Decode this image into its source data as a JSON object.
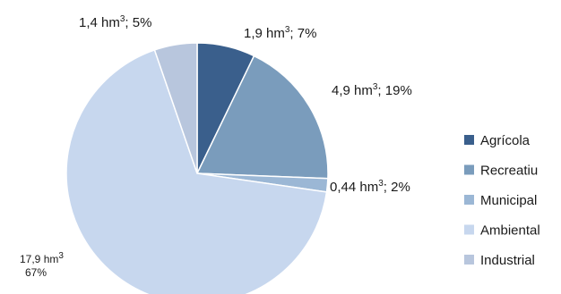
{
  "chart_data": {
    "type": "pie",
    "title": "",
    "slices": [
      {
        "name": "Agrícola",
        "value": 1.9,
        "percent": 7,
        "color": "#3a5f8c",
        "label_main": "1,9 hm",
        "label_sup": "3",
        "label_tail": "; 7%"
      },
      {
        "name": "Recreatiu",
        "value": 4.9,
        "percent": 19,
        "color": "#7a9cbc",
        "label_main": "4,9 hm",
        "label_sup": "3",
        "label_tail": "; 19%"
      },
      {
        "name": "Municipal",
        "value": 0.44,
        "percent": 2,
        "color": "#9bb7d5",
        "label_main": "0,44 hm",
        "label_sup": "3",
        "label_tail": "; 2%"
      },
      {
        "name": "Ambiental",
        "value": 17.9,
        "percent": 67,
        "color": "#c7d7ee",
        "label_main": "17,9 hm",
        "label_sup": "3",
        "label_line2": "67%"
      },
      {
        "name": "Industrial",
        "value": 1.4,
        "percent": 5,
        "color": "#b8c6dd",
        "label_main": "1,4 hm",
        "label_sup": "3",
        "label_tail": "; 5%"
      }
    ],
    "legend": {
      "position": "right",
      "entries": [
        "Agrícola",
        "Recreatiu",
        "Municipal",
        "Ambiental",
        "Industrial"
      ]
    }
  }
}
